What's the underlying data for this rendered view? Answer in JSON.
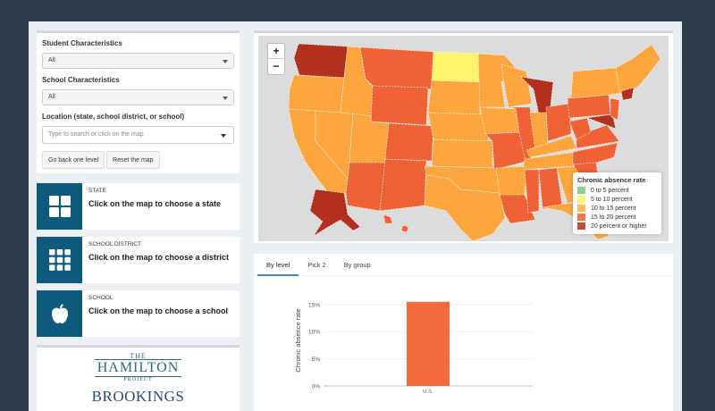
{
  "filters": {
    "student_label": "Student Characteristics",
    "student_value": "All",
    "school_label": "School Characteristics",
    "school_value": "All",
    "location_label": "Location (state, school district, or school)",
    "location_placeholder": "Type to search or click on the map",
    "back_button": "Go back one level",
    "reset_button": "Reset the map"
  },
  "info": {
    "state": {
      "small": "STATE",
      "big": "Click on the map to choose a state"
    },
    "district": {
      "small": "SCHOOL DISTRICT",
      "big": "Click on the map to choose a district"
    },
    "school": {
      "small": "SCHOOL",
      "big": "Click on the map to choose a school"
    }
  },
  "logo": {
    "the": "THE",
    "hamilton": "HAMILTON",
    "project": "PROJECT",
    "brookings": "BROOKINGS"
  },
  "map": {
    "zoom_in": "+",
    "zoom_out": "−",
    "legend_title": "Chronic absence rate",
    "legend": [
      {
        "label": "0 to 5 percent",
        "color": "#78c679"
      },
      {
        "label": "5 to 10 percent",
        "color": "#fff45a"
      },
      {
        "label": "10 to 15 percent",
        "color": "#fdae3b"
      },
      {
        "label": "15 to 20 percent",
        "color": "#f0602e"
      },
      {
        "label": "20 percent or higher",
        "color": "#b3301f"
      }
    ],
    "colors": {
      "background": "#dcdcdc",
      "bin3": "#fca63d",
      "bin4": "#ef6236",
      "bin5": "#b3301f",
      "bin2": "#fff36b"
    }
  },
  "tabs": [
    "By level",
    "Pick 2",
    "By group"
  ],
  "chart_data": {
    "type": "bar",
    "categories": [
      "U.S."
    ],
    "values": [
      15.5
    ],
    "ylabel": "Chronic absence rate",
    "ylim": [
      0,
      15.8
    ],
    "yticks": [
      "0%",
      "5%",
      "10%",
      "15%"
    ],
    "color": "#f26b3c"
  }
}
